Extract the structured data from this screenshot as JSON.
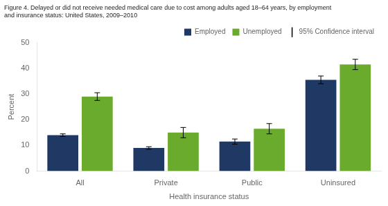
{
  "chart_data": {
    "type": "bar",
    "title": "Figure 4. Delayed or did not receive needed medical care due to cost among adults aged 18–64 years, by employment\nand insurance status: United States, 2009–2010",
    "categories": [
      "All",
      "Private",
      "Public",
      "Uninsured"
    ],
    "series": [
      {
        "name": "Employed",
        "color": "#1F3864",
        "values": [
          14.0,
          9.0,
          11.5,
          35.5
        ],
        "errors": [
          0.5,
          0.5,
          1.0,
          1.5
        ]
      },
      {
        "name": "Unemployed",
        "color": "#6AAB2E",
        "values": [
          29.0,
          15.0,
          16.5,
          41.5
        ],
        "errors": [
          1.5,
          2.0,
          2.0,
          2.0
        ]
      }
    ],
    "error_label": "95% Confidence interval",
    "xlabel": "Health insurance status",
    "ylabel": "Percent",
    "ylim": [
      0,
      50
    ],
    "yticks": [
      0,
      10,
      20,
      30,
      40,
      50
    ],
    "grid": false,
    "legend": "upper right"
  }
}
